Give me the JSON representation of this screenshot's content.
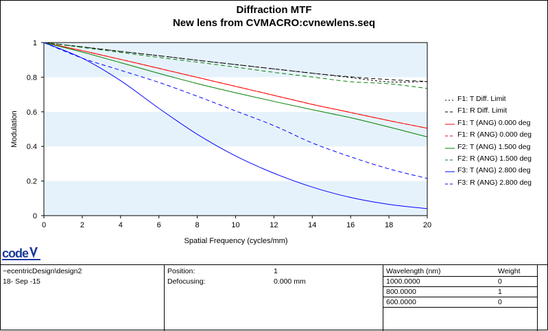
{
  "title": "Diffraction MTF",
  "subtitle": "New lens from CVMACRO:cvnewlens.seq",
  "chart_data": {
    "type": "line",
    "xlabel": "Spatial Frequency (cycles/mm)",
    "ylabel": "Modulation",
    "xlim": [
      0,
      20
    ],
    "ylim": [
      0,
      1
    ],
    "x_ticks": [
      "0",
      "2",
      "4",
      "6",
      "8",
      "10",
      "12",
      "14",
      "16",
      "18",
      "20"
    ],
    "y_ticks": [
      "0",
      "0.2",
      "0.4",
      "0.6",
      "0.8",
      "1"
    ],
    "grid": "alternating horizontal bands",
    "legend_position": "right",
    "x": [
      0,
      2,
      4,
      6,
      8,
      10,
      12,
      14,
      16,
      18,
      20
    ],
    "series": [
      {
        "name": "F1: T Diff. Limit",
        "color": "#000000",
        "dash": "dotted",
        "values": [
          1.0,
          0.975,
          0.949,
          0.924,
          0.898,
          0.873,
          0.848,
          0.823,
          0.798,
          0.773,
          0.775
        ]
      },
      {
        "name": "F1: R Diff. Limit",
        "color": "#000000",
        "dash": "dashed",
        "values": [
          1.0,
          0.975,
          0.949,
          0.924,
          0.898,
          0.873,
          0.848,
          0.823,
          0.802,
          0.786,
          0.775
        ]
      },
      {
        "name": "F1: T (ANG) 0.000 deg",
        "color": "#ff0000",
        "dash": "solid",
        "values": [
          1.0,
          0.953,
          0.903,
          0.851,
          0.799,
          0.747,
          0.695,
          0.643,
          0.596,
          0.549,
          0.505
        ]
      },
      {
        "name": "F1: R (ANG) 0.000 deg",
        "color": "#ff0000",
        "dash": "dashed",
        "values": [
          1.0,
          0.953,
          0.903,
          0.851,
          0.799,
          0.747,
          0.695,
          0.643,
          0.596,
          0.549,
          0.505
        ]
      },
      {
        "name": "F2: T (ANG) 1.500 deg",
        "color": "#008000",
        "dash": "solid",
        "values": [
          1.0,
          0.945,
          0.884,
          0.822,
          0.763,
          0.71,
          0.66,
          0.612,
          0.566,
          0.512,
          0.455
        ]
      },
      {
        "name": "F2: R (ANG) 1.500 deg",
        "color": "#008000",
        "dash": "dashed",
        "values": [
          1.0,
          0.972,
          0.943,
          0.914,
          0.887,
          0.858,
          0.828,
          0.801,
          0.774,
          0.762,
          0.735
        ]
      },
      {
        "name": "F3: T (ANG) 2.800 deg",
        "color": "#0000ff",
        "dash": "solid",
        "values": [
          1.0,
          0.91,
          0.78,
          0.62,
          0.47,
          0.345,
          0.245,
          0.165,
          0.105,
          0.065,
          0.04
        ]
      },
      {
        "name": "F3: R (ANG) 2.800 deg",
        "color": "#0000ff",
        "dash": "dashed",
        "values": [
          1.0,
          0.91,
          0.84,
          0.77,
          0.69,
          0.605,
          0.52,
          0.42,
          0.34,
          0.27,
          0.215
        ]
      }
    ]
  },
  "logo_text": "code V",
  "info": {
    "path": "~ecentricDesign\\design2",
    "date": "18- Sep -15",
    "position_label": "Position:",
    "position_value": "1",
    "defocus_label": "Defocusing:",
    "defocus_value": "0.000 mm",
    "wavelength_header": "Wavelength (nm)",
    "weight_header": "Weight",
    "wavelengths": [
      {
        "wl": "1000.0000",
        "w": "0"
      },
      {
        "wl": "800.0000",
        "w": "1"
      },
      {
        "wl": "600.0000",
        "w": "0"
      }
    ]
  }
}
